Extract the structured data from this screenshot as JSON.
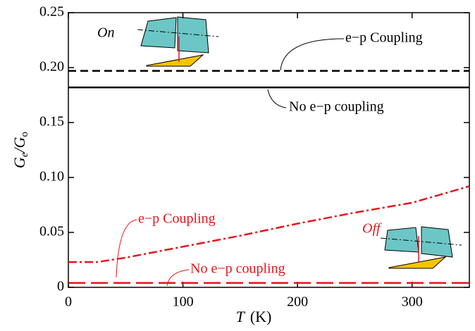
{
  "chart_data": {
    "type": "line",
    "x": [
      0,
      25,
      50,
      100,
      150,
      200,
      250,
      300,
      350
    ],
    "series": [
      {
        "color": "#000000",
        "dash": "11,6",
        "width": 2.5,
        "values": [
          0.197,
          0.197,
          0.197,
          0.197,
          0.197,
          0.197,
          0.197,
          0.197,
          0.197
        ]
      },
      {
        "color": "#000000",
        "dash": "none",
        "width": 2.5,
        "values": [
          0.182,
          0.182,
          0.182,
          0.182,
          0.182,
          0.182,
          0.182,
          0.182,
          0.182
        ]
      },
      {
        "color": "#e8141b",
        "dash": "12,4,3,4",
        "width": 2.5,
        "values": [
          0.023,
          0.023,
          0.027,
          0.037,
          0.047,
          0.058,
          0.068,
          0.077,
          0.092
        ]
      },
      {
        "color": "#e8141b",
        "dash": "24,8",
        "width": 2.5,
        "values": [
          0.004,
          0.004,
          0.004,
          0.004,
          0.004,
          0.004,
          0.004,
          0.004,
          0.004
        ]
      }
    ],
    "xlim": [
      0,
      350
    ],
    "xticks": [
      0,
      100,
      200,
      300
    ],
    "ylim": [
      0,
      0.25
    ],
    "yticks": [
      0,
      0.05,
      {
        "value": 0.1,
        "label": "0.10"
      },
      0.15,
      {
        "value": 0.2,
        "label": "0.20"
      },
      0.25
    ],
    "xlabel": [
      "T",
      "(K)"
    ],
    "ylabel": [
      "G",
      "e",
      "/G",
      "o"
    ],
    "annotations": [
      "On",
      "e−p Coupling",
      "No e−p coupling",
      "Off",
      "e−p Coupling",
      "No e−p coupling"
    ]
  }
}
